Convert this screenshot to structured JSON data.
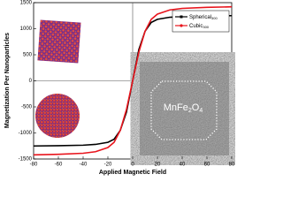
{
  "chart_data": {
    "type": "line",
    "x_label": "Applied Magnetic Field",
    "y_label": "Magnetization Per Nanoparticles",
    "x": [
      -80,
      -60,
      -40,
      -30,
      -20,
      -15,
      -10,
      -5,
      0,
      5,
      10,
      15,
      20,
      30,
      40,
      60,
      80
    ],
    "series": [
      {
        "name": "Spherical",
        "name_sub": "300",
        "color": "#000000",
        "values": [
          -1250,
          -1245,
          -1235,
          -1220,
          -1180,
          -1120,
          -950,
          -600,
          0,
          600,
          950,
          1120,
          1180,
          1220,
          1235,
          1245,
          1250
        ]
      },
      {
        "name": "Cubic",
        "name_sub": "300",
        "color": "#e8141c",
        "values": [
          -1420,
          -1410,
          -1390,
          -1360,
          -1280,
          -1180,
          -950,
          -550,
          0,
          550,
          950,
          1180,
          1280,
          1360,
          1390,
          1410,
          1420
        ]
      }
    ],
    "xlim": [
      -80,
      80
    ],
    "xticks": [
      -80,
      -60,
      -40,
      -20,
      0,
      20,
      40,
      60,
      80
    ],
    "ylim": [
      -1500,
      1500
    ],
    "yticks": [
      -1500,
      -1000,
      -500,
      0,
      500,
      1000,
      1500
    ],
    "annotation": [
      "MnFe",
      "2",
      "O",
      "4"
    ]
  }
}
